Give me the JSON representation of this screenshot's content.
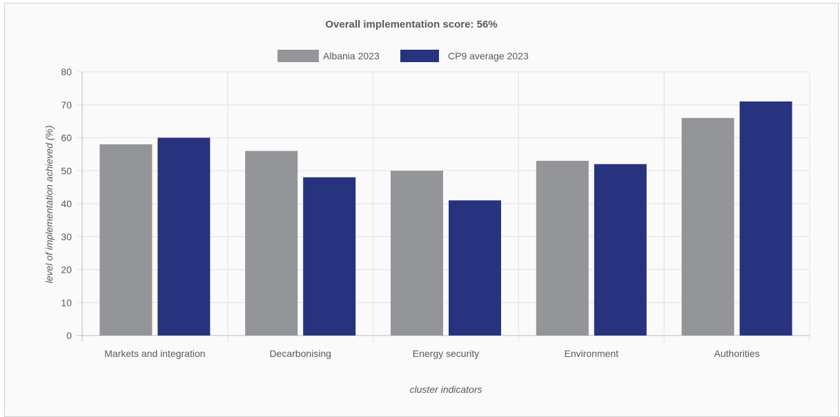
{
  "chart_data": {
    "type": "bar",
    "title": "Overall implementation score: 56%",
    "xlabel": "cluster indicators",
    "ylabel": "level of implementation achieved (%)",
    "categories": [
      "Markets and integration",
      "Decarbonising",
      "Energy security",
      "Environment",
      "Authorities"
    ],
    "series": [
      {
        "name": "Albania 2023",
        "color": "#939598",
        "values": [
          58,
          56,
          50,
          53,
          66
        ]
      },
      {
        "name": "CP9 average 2023",
        "color": "#27337f",
        "values": [
          60,
          48,
          41,
          52,
          71
        ]
      }
    ],
    "ylim": [
      0,
      80
    ],
    "yticks": [
      0,
      10,
      20,
      30,
      40,
      50,
      60,
      70,
      80
    ],
    "grid": true,
    "legend_position": "top-center"
  }
}
